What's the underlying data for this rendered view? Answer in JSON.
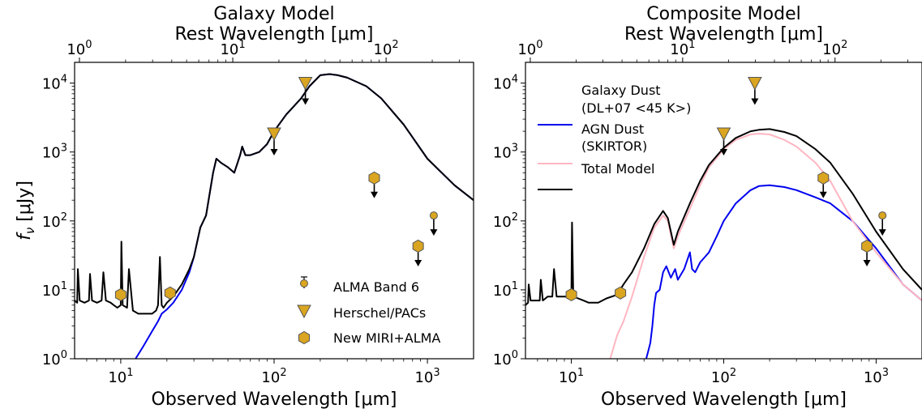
{
  "chart_data": [
    {
      "type": "line",
      "title": "Galaxy Model",
      "top_axis_label": "Rest Wavelength [μm]",
      "xlabel": "Observed Wavelength [μm]",
      "ylabel": "f_ν [μJy]",
      "xscale": "log",
      "yscale": "log",
      "xlim": [
        5,
        2000
      ],
      "ylim": [
        1,
        20000
      ],
      "rest_xlim": [
        0.93,
        372
      ],
      "x_ticks": [
        "10^1",
        "10^2",
        "10^3"
      ],
      "y_ticks": [
        "10^0",
        "10^1",
        "10^2",
        "10^3",
        "10^4"
      ],
      "top_ticks": [
        "10^0",
        "10^1",
        "10^2"
      ],
      "grid": false,
      "legend_position": "bottom-right",
      "legend": [
        "ALMA Band 6",
        "Herschel/PACs",
        "New MIRI+ALMA"
      ],
      "series": [
        {
          "color": "#0000ee",
          "x": [
            12.5,
            14,
            16,
            17.5,
            18.5,
            20,
            22,
            25,
            28,
            30,
            33,
            36,
            40,
            42,
            45,
            50,
            55,
            60,
            62,
            65,
            70,
            80,
            90,
            100,
            120,
            150,
            170,
            200,
            230,
            260,
            300,
            400,
            500,
            700,
            1000,
            1500,
            2000
          ],
          "y": [
            1,
            1.5,
            2.5,
            3.5,
            4.5,
            5.2,
            6.5,
            10,
            18,
            30,
            80,
            120,
            500,
            800,
            700,
            600,
            500,
            900,
            1200,
            900,
            900,
            1000,
            1300,
            2000,
            3500,
            6000,
            9000,
            13000,
            13500,
            13000,
            12000,
            9000,
            6000,
            2500,
            800,
            330,
            200
          ]
        },
        {
          "color": "#000000",
          "x": [
            5,
            5.2,
            5.25,
            5.4,
            5.8,
            6.2,
            6.3,
            6.5,
            7,
            7.5,
            7.7,
            8,
            8.6,
            9,
            9.5,
            10,
            10.1,
            10.3,
            11,
            11.3,
            12,
            13,
            14,
            15,
            16,
            17,
            17.5,
            18,
            18.5,
            19,
            20,
            22,
            25,
            28,
            30,
            33,
            36,
            40,
            42,
            45,
            50,
            55,
            60,
            62,
            65,
            70,
            80,
            90,
            100,
            120,
            150,
            170,
            200,
            230,
            260,
            300,
            400,
            500,
            700,
            1000,
            1500,
            2000
          ],
          "y": [
            7,
            6.5,
            20,
            7,
            6.5,
            7,
            17,
            7,
            6.5,
            7,
            18,
            7,
            6.5,
            6,
            5.5,
            6,
            50,
            6,
            5.5,
            20,
            5,
            4.5,
            4.5,
            4.5,
            4.5,
            5,
            6,
            30,
            6,
            5.5,
            6.5,
            8,
            12,
            20,
            30,
            80,
            120,
            500,
            800,
            700,
            600,
            500,
            900,
            1200,
            900,
            900,
            1000,
            1300,
            2000,
            3500,
            6000,
            9000,
            13000,
            13500,
            13000,
            12000,
            9000,
            6000,
            2500,
            800,
            330,
            200
          ]
        }
      ],
      "points": [
        {
          "marker": "pin",
          "x": 1100,
          "y": 120,
          "upper_limit": true
        },
        {
          "marker": "triangle",
          "x": 100,
          "y": 1750,
          "upper_limit": true
        },
        {
          "marker": "triangle",
          "x": 160,
          "y": 9500,
          "upper_limit": true
        },
        {
          "marker": "hexagon",
          "x": 10,
          "y": 8.5,
          "upper_limit": false
        },
        {
          "marker": "hexagon",
          "x": 21,
          "y": 9,
          "upper_limit": false
        },
        {
          "marker": "hexagon",
          "x": 450,
          "y": 420,
          "upper_limit": true
        },
        {
          "marker": "hexagon",
          "x": 870,
          "y": 43,
          "upper_limit": true
        }
      ],
      "colors": {
        "marker_fill": "#DAA520",
        "marker_edge": "#555555"
      }
    },
    {
      "type": "line",
      "title": "Composite Model",
      "top_axis_label": "Rest Wavelength [μm]",
      "xlabel": "Observed Wavelength [μm]",
      "ylabel": "",
      "xscale": "log",
      "yscale": "log",
      "xlim": [
        5,
        2000
      ],
      "ylim": [
        1,
        20000
      ],
      "rest_xlim": [
        0.93,
        372
      ],
      "x_ticks": [
        "10^1",
        "10^2",
        "10^3"
      ],
      "y_ticks": [
        "10^0",
        "10^1",
        "10^2",
        "10^3",
        "10^4"
      ],
      "top_ticks": [
        "10^0",
        "10^1",
        "10^2"
      ],
      "grid": false,
      "legend_position": "top-left",
      "legend": [
        "Galaxy Dust",
        "(DL+07 <45 K>)",
        "AGN Dust",
        "(SKIRTOR)",
        "Total Model"
      ],
      "series": [
        {
          "name": "Galaxy Dust (DL+07 <45 K>)",
          "color": "#0000ee",
          "x": [
            31,
            32,
            33,
            34,
            35,
            36,
            38,
            40,
            42,
            45,
            48,
            50,
            55,
            60,
            62,
            65,
            70,
            80,
            90,
            100,
            120,
            150,
            170,
            200,
            250,
            300,
            400,
            500,
            700,
            1000,
            1500,
            2000
          ],
          "y": [
            1,
            1.3,
            1.7,
            3,
            6,
            9,
            10,
            18,
            22,
            15,
            20,
            14,
            20,
            35,
            20,
            18,
            25,
            35,
            60,
            100,
            180,
            280,
            320,
            330,
            310,
            280,
            220,
            180,
            100,
            40,
            12,
            7
          ]
        },
        {
          "name": "AGN Dust (SKIRTOR)",
          "color": "#ffb6c1",
          "x": [
            18,
            20,
            22,
            25,
            30,
            35,
            40,
            43,
            47,
            50,
            60,
            70,
            80,
            100,
            120,
            150,
            170,
            200,
            250,
            300,
            400,
            500,
            700,
            1000,
            1500,
            2000
          ],
          "y": [
            1,
            2.2,
            3.5,
            8,
            30,
            80,
            120,
            100,
            40,
            60,
            150,
            330,
            600,
            1100,
            1500,
            1800,
            1850,
            1800,
            1500,
            1200,
            700,
            380,
            100,
            35,
            12,
            7
          ]
        },
        {
          "name": "Total Model",
          "color": "#000000",
          "x": [
            5,
            5.2,
            5.25,
            5.4,
            5.8,
            6.2,
            6.3,
            6.5,
            7,
            7.5,
            7.7,
            8,
            9,
            10,
            10.1,
            10.3,
            12,
            13,
            14,
            15,
            17,
            20,
            22,
            25,
            30,
            35,
            40,
            43,
            47,
            50,
            60,
            70,
            80,
            100,
            120,
            150,
            170,
            200,
            250,
            300,
            400,
            500,
            700,
            1000,
            1500,
            2000
          ],
          "y": [
            6,
            6.5,
            12,
            7,
            7,
            7,
            14,
            7,
            8,
            8,
            20,
            8,
            8,
            8,
            95,
            8,
            7,
            6.5,
            6.5,
            6.5,
            7.5,
            8.5,
            12,
            18,
            40,
            90,
            140,
            110,
            45,
            70,
            180,
            380,
            650,
            1150,
            1600,
            2000,
            2100,
            2150,
            1950,
            1700,
            1100,
            700,
            250,
            70,
            20,
            10
          ]
        }
      ],
      "points": [
        {
          "marker": "hexagon",
          "x": 10,
          "y": 8.5,
          "upper_limit": false
        },
        {
          "marker": "hexagon",
          "x": 21,
          "y": 9,
          "upper_limit": false
        },
        {
          "marker": "triangle",
          "x": 100,
          "y": 1750,
          "upper_limit": true
        },
        {
          "marker": "triangle",
          "x": 160,
          "y": 9500,
          "upper_limit": true
        },
        {
          "marker": "hexagon",
          "x": 450,
          "y": 420,
          "upper_limit": true
        },
        {
          "marker": "hexagon",
          "x": 870,
          "y": 43,
          "upper_limit": true
        },
        {
          "marker": "pin",
          "x": 1100,
          "y": 120,
          "upper_limit": true
        }
      ],
      "colors": {
        "marker_fill": "#DAA520",
        "marker_edge": "#555555"
      }
    }
  ]
}
